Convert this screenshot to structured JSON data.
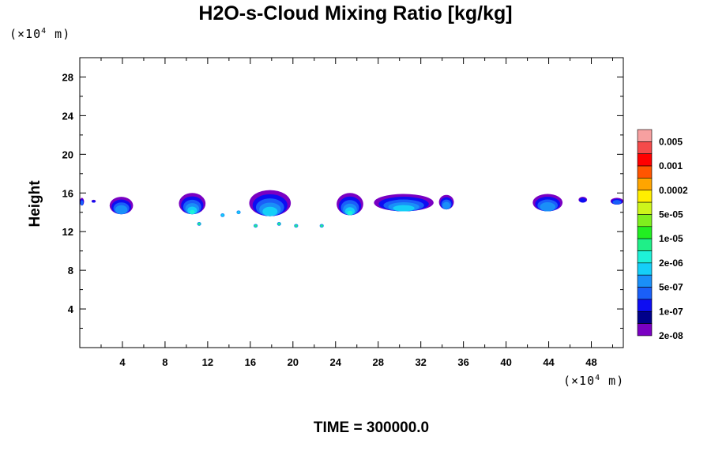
{
  "chart_data": {
    "type": "contour",
    "title": "H2O-s-Cloud Mixing Ratio [kg/kg]",
    "ylabel": "Height",
    "x_unit": "(×10⁴ m)",
    "y_unit": "(×10⁴ m)",
    "x_unit_base": "(×10",
    "x_unit_exp": "4",
    "x_unit_tail": " m)",
    "y_unit_base": "(×10",
    "y_unit_exp": "4",
    "y_unit_tail": " m)",
    "xlim": [
      0,
      51
    ],
    "ylim": [
      0,
      30
    ],
    "x_ticks": [
      4,
      8,
      12,
      16,
      20,
      24,
      28,
      32,
      36,
      40,
      44,
      48
    ],
    "x_tick_labels": [
      "4",
      "8",
      "12",
      "16",
      "20",
      "24",
      "28",
      "32",
      "36",
      "40",
      "44",
      "48"
    ],
    "y_ticks": [
      4,
      8,
      12,
      16,
      20,
      24,
      28
    ],
    "y_tick_labels": [
      "4",
      "8",
      "12",
      "16",
      "20",
      "24",
      "28"
    ],
    "colorbar": {
      "colors": [
        "#f7a0a0",
        "#f54a4a",
        "#ff0000",
        "#ff5500",
        "#ffa500",
        "#ffee00",
        "#cdf51b",
        "#7fef1e",
        "#22ee22",
        "#1fef88",
        "#1ef1d8",
        "#15cff8",
        "#1a8ff8",
        "#1a5ff8",
        "#0d0df2",
        "#00008a",
        "#7a00c2"
      ],
      "labels": [
        "0.005",
        "0.001",
        "0.0002",
        "5e-05",
        "1e-05",
        "2e-06",
        "5e-07",
        "1e-07",
        "2e-08"
      ]
    },
    "cloud_features": [
      {
        "x0": 0.0,
        "x1": 0.4,
        "ytop": 15.5,
        "ybot": 14.7,
        "max": 1
      },
      {
        "x0": 1.1,
        "x1": 1.5,
        "ytop": 15.3,
        "ybot": 15.0,
        "max": 0
      },
      {
        "x0": 2.8,
        "x1": 5.0,
        "ytop": 15.6,
        "ybot": 13.8,
        "max": 2
      },
      {
        "x0": 9.3,
        "x1": 11.8,
        "ytop": 16.0,
        "ybot": 13.8,
        "max": 4
      },
      {
        "x0": 15.9,
        "x1": 19.8,
        "ytop": 16.3,
        "ybot": 13.6,
        "max": 3
      },
      {
        "x0": 24.1,
        "x1": 26.6,
        "ytop": 16.0,
        "ybot": 13.7,
        "max": 4
      },
      {
        "x0": 27.6,
        "x1": 33.2,
        "ytop": 15.9,
        "ybot": 14.1,
        "max": 3
      },
      {
        "x0": 33.7,
        "x1": 35.1,
        "ytop": 15.8,
        "ybot": 14.3,
        "max": 2
      },
      {
        "x0": 42.5,
        "x1": 45.3,
        "ytop": 15.9,
        "ybot": 14.1,
        "max": 2
      },
      {
        "x0": 46.8,
        "x1": 47.6,
        "ytop": 15.6,
        "ybot": 15.0,
        "max": 0
      },
      {
        "x0": 49.8,
        "x1": 51.0,
        "ytop": 15.5,
        "ybot": 14.8,
        "max": 1
      }
    ],
    "small_cells": [
      {
        "x": 11.2,
        "y": 12.8,
        "lvl": 4
      },
      {
        "x": 13.4,
        "y": 13.7,
        "lvl": 2
      },
      {
        "x": 14.9,
        "y": 14.0,
        "lvl": 2
      },
      {
        "x": 16.5,
        "y": 12.6,
        "lvl": 4
      },
      {
        "x": 18.7,
        "y": 12.8,
        "lvl": 4
      },
      {
        "x": 20.3,
        "y": 12.6,
        "lvl": 4
      },
      {
        "x": 22.7,
        "y": 12.6,
        "lvl": 4
      }
    ]
  },
  "time_label": "TIME = 300000.0"
}
